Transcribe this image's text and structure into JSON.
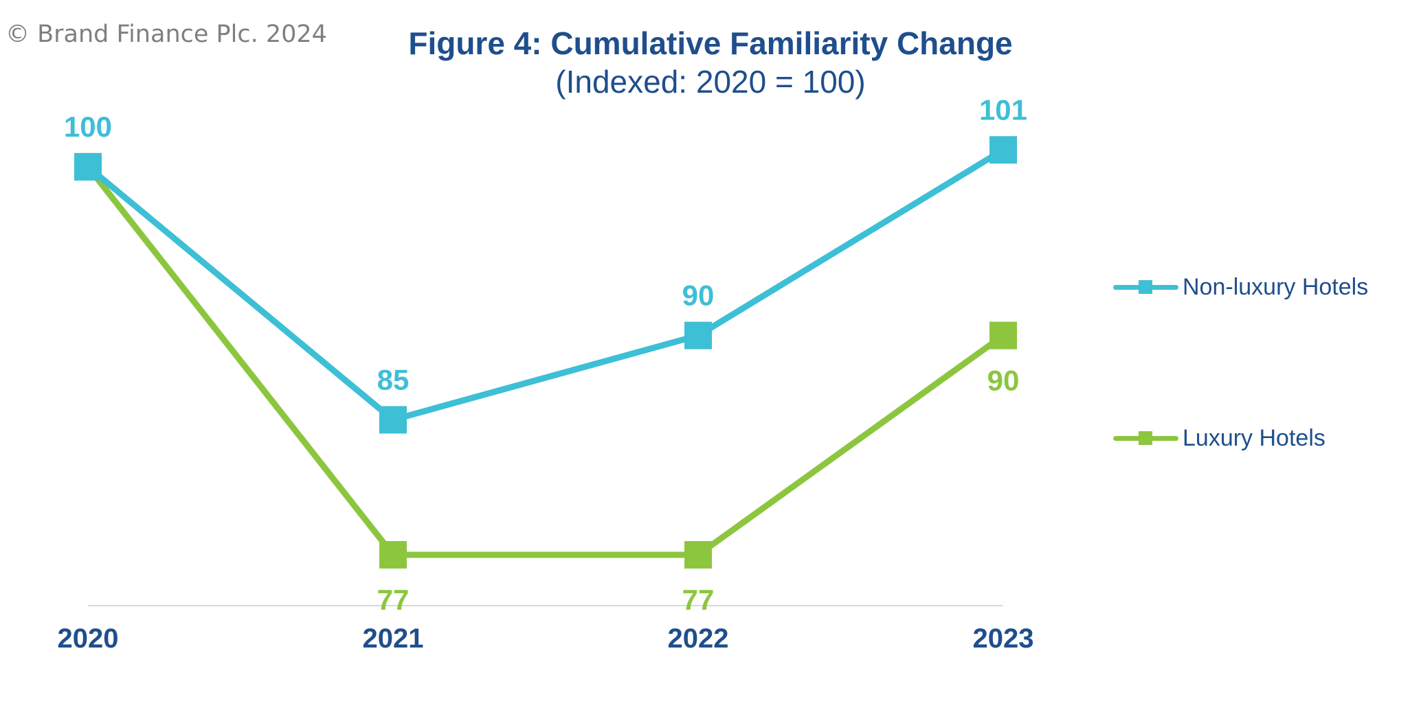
{
  "copyright": "© Brand Finance Plc. 2024",
  "colors": {
    "title": "#1f4e8c",
    "axis_label": "#1f4e8c",
    "copyright": "#7f7f7f",
    "baseline": "#d9d9d9"
  },
  "chart_data": {
    "type": "line",
    "title": "Figure 4: Cumulative Familiarity Change",
    "subtitle": "(Indexed: 2020 = 100)",
    "categories": [
      "2020",
      "2021",
      "2022",
      "2023"
    ],
    "series": [
      {
        "name": "Non-luxury Hotels",
        "color": "#3dbfd6",
        "values": [
          100,
          85,
          90,
          101
        ],
        "labels": [
          "100",
          "85",
          "90",
          "101"
        ],
        "label_positions": [
          "above",
          "above",
          "above",
          "above"
        ]
      },
      {
        "name": "Luxury Hotels",
        "color": "#8cc63f",
        "values": [
          100,
          77,
          77,
          90
        ],
        "labels": [
          "",
          "77",
          "77",
          "90"
        ],
        "label_positions": [
          "above",
          "below",
          "below",
          "below"
        ]
      }
    ],
    "ylim": [
      70,
      105
    ],
    "grid": false,
    "legend_position": "right",
    "xlabel": "",
    "ylabel": ""
  }
}
